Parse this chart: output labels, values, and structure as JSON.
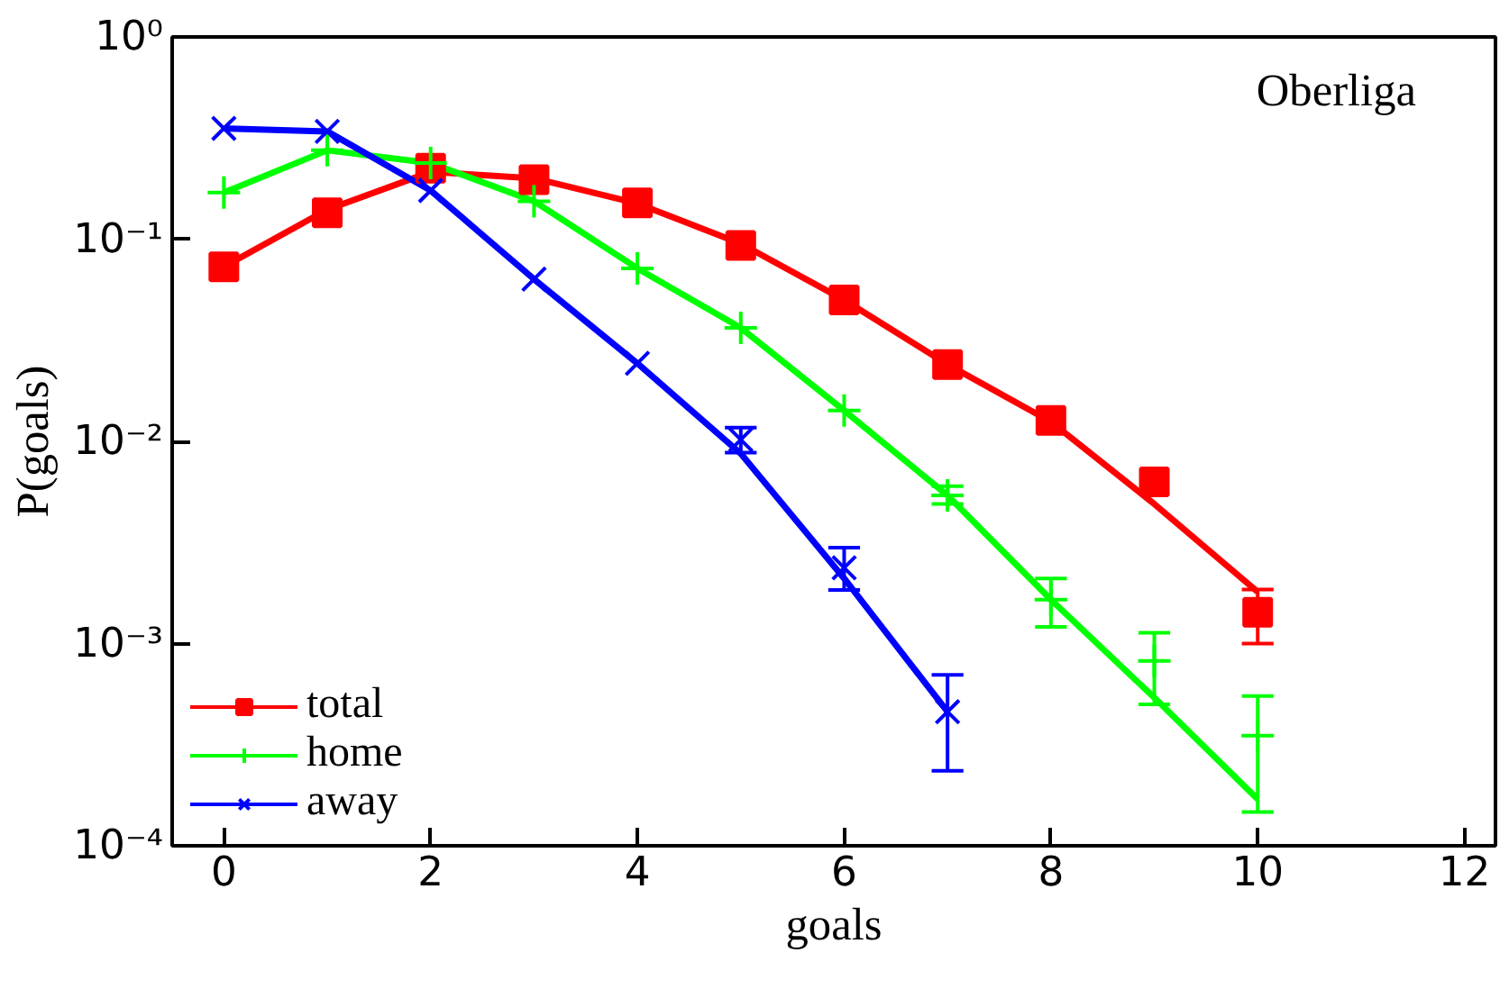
{
  "chart_data": {
    "type": "scatter",
    "xlabel": "goals",
    "ylabel": "P(goals)",
    "log": "y",
    "grid": false,
    "legend": "bottom left",
    "annotations": [
      "Oberliga"
    ],
    "xlim": [
      -0.5,
      12.3
    ],
    "xticks": [
      0,
      2,
      4,
      6,
      8,
      10,
      12
    ],
    "ylim": [
      0.0001,
      1
    ],
    "yticks": [
      {
        "value": 1,
        "label": "10⁰"
      },
      {
        "value": 0.1,
        "label": "10⁻¹"
      },
      {
        "value": 0.01,
        "label": "10⁻²"
      },
      {
        "value": 0.001,
        "label": "10⁻³"
      },
      {
        "value": 0.0001,
        "label": "10⁻⁴"
      }
    ],
    "series": [
      {
        "name": "total",
        "marker": "square",
        "color": "#ff0000",
        "x": [
          0,
          1,
          2,
          3,
          4,
          5,
          6,
          7,
          8,
          9,
          10
        ],
        "values": [
          0.073,
          0.135,
          0.224,
          0.197,
          0.151,
          0.093,
          0.05,
          0.024,
          0.0127,
          0.0063,
          0.00143
        ],
        "errors": [
          null,
          null,
          null,
          null,
          null,
          null,
          null,
          null,
          null,
          null,
          [
            0.001,
            0.00185
          ]
        ]
      },
      {
        "name": "home",
        "marker": "cross",
        "color": "#00ff00",
        "x": [
          0,
          1,
          2,
          3,
          4,
          5,
          6,
          7,
          8,
          9,
          10
        ],
        "values": [
          0.17,
          0.275,
          0.238,
          0.154,
          0.0717,
          0.0364,
          0.0142,
          0.0054,
          0.00165,
          0.00082,
          0.00035
        ],
        "errors": [
          null,
          null,
          null,
          null,
          null,
          null,
          null,
          [
            0.0049,
            0.006
          ],
          [
            0.00121,
            0.0021
          ],
          [
            0.0005,
            0.00113
          ],
          [
            0.000147,
            0.00055
          ]
        ]
      },
      {
        "name": "away",
        "marker": "x",
        "color": "#0000ff",
        "x": [
          0,
          1,
          2,
          3,
          4,
          5,
          6,
          7
        ],
        "values": [
          0.353,
          0.341,
          0.174,
          0.0634,
          0.0243,
          0.0102,
          0.00237,
          0.00046
        ],
        "errors": [
          null,
          null,
          null,
          null,
          null,
          [
            0.0088,
            0.0117
          ],
          [
            0.00184,
            0.00298
          ],
          [
            0.000235,
            0.0007
          ]
        ]
      },
      {
        "type": "line",
        "color": "#ff0000",
        "x": [
          0,
          1,
          2,
          3,
          4,
          5,
          6,
          7,
          8,
          9,
          10
        ],
        "values": [
          0.073,
          0.14,
          0.215,
          0.2,
          0.15,
          0.095,
          0.05,
          0.024,
          0.0125,
          0.0049,
          0.0018
        ]
      },
      {
        "type": "line",
        "color": "#00ff00",
        "x": [
          0,
          1,
          2,
          3,
          4,
          5,
          6,
          7,
          8,
          9,
          10
        ],
        "values": [
          0.17,
          0.275,
          0.238,
          0.154,
          0.0717,
          0.0364,
          0.0142,
          0.0054,
          0.00165,
          0.00054,
          0.00017
        ]
      },
      {
        "type": "line",
        "color": "#0000ff",
        "x": [
          0,
          1,
          2,
          3,
          4,
          5,
          6,
          7
        ],
        "values": [
          0.353,
          0.341,
          0.174,
          0.0634,
          0.0243,
          0.0087,
          0.0021,
          0.00046
        ]
      }
    ]
  }
}
